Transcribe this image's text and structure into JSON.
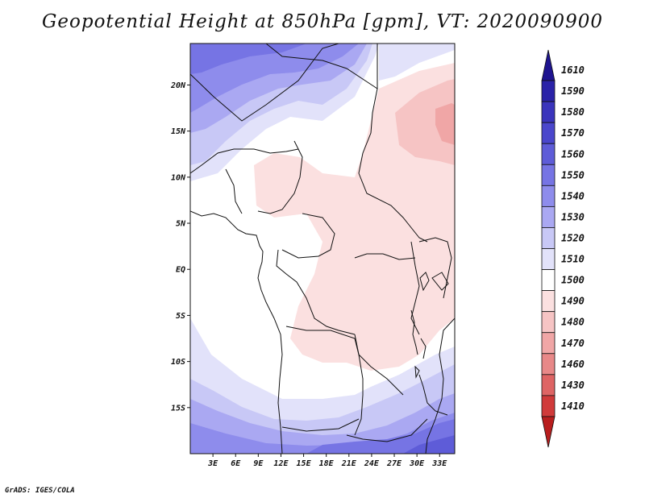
{
  "title": "Geopotential Height at 850hPa [gpm], VT: 2020090900",
  "credit": "GrADS: IGES/COLA",
  "lat_ticks": [
    {
      "label": "20N",
      "lat": 20
    },
    {
      "label": "15N",
      "lat": 15
    },
    {
      "label": "10N",
      "lat": 10
    },
    {
      "label": "5N",
      "lat": 5
    },
    {
      "label": "EQ",
      "lat": 0
    },
    {
      "label": "5S",
      "lat": -5
    },
    {
      "label": "10S",
      "lat": -10
    },
    {
      "label": "15S",
      "lat": -15
    }
  ],
  "lon_ticks": [
    {
      "label": "3E",
      "lon": 3
    },
    {
      "label": "6E",
      "lon": 6
    },
    {
      "label": "9E",
      "lon": 9
    },
    {
      "label": "12E",
      "lon": 12
    },
    {
      "label": "15E",
      "lon": 15
    },
    {
      "label": "18E",
      "lon": 18
    },
    {
      "label": "21E",
      "lon": 21
    },
    {
      "label": "24E",
      "lon": 24
    },
    {
      "label": "27E",
      "lon": 27
    },
    {
      "label": "30E",
      "lon": 30
    },
    {
      "label": "33E",
      "lon": 33
    }
  ],
  "colorbar": {
    "levels": [
      "1610",
      "1590",
      "1580",
      "1570",
      "1560",
      "1550",
      "1540",
      "1530",
      "1520",
      "1510",
      "1500",
      "1490",
      "1480",
      "1470",
      "1460",
      "1430",
      "1410"
    ],
    "colors": [
      "#1e1490",
      "#2a22a8",
      "#3a34bc",
      "#4a46cc",
      "#5e5cd8",
      "#7674e4",
      "#8e8cec",
      "#aaa8f2",
      "#c8c8f6",
      "#e2e2fa",
      "#ffffff",
      "#fbe0e0",
      "#f6c4c4",
      "#f0a6a6",
      "#e88888",
      "#de6464",
      "#d03a3a",
      "#b81e1e"
    ]
  },
  "map_extent": {
    "lon_min": 0,
    "lon_max": 35,
    "lat_min": -20,
    "lat_max": 24.5
  }
}
